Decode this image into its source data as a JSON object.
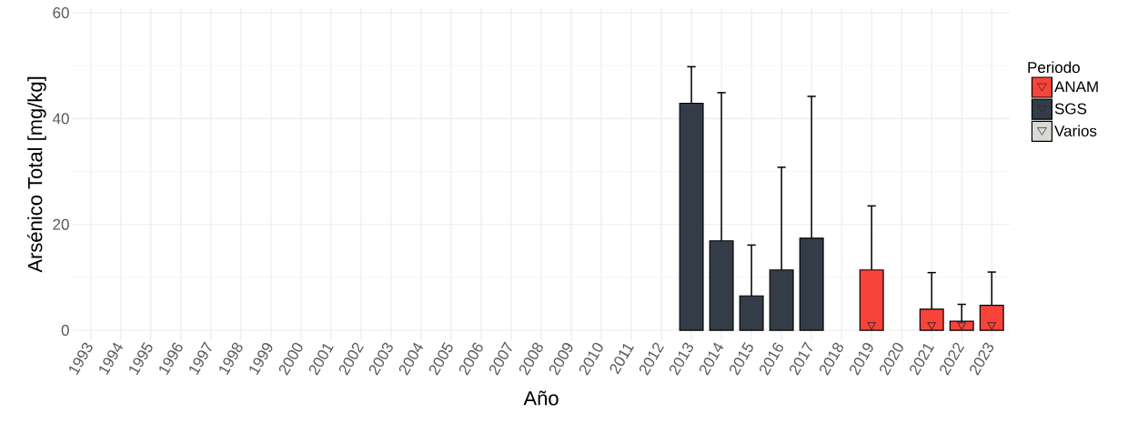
{
  "chart_data": {
    "type": "bar",
    "xlabel": "Año",
    "ylabel": "Arsénico Total [mg/kg]",
    "legend_title": "Periodo",
    "categories": [
      "1993",
      "1994",
      "1995",
      "1996",
      "1997",
      "1998",
      "1999",
      "2000",
      "2001",
      "2002",
      "2003",
      "2004",
      "2005",
      "2006",
      "2007",
      "2008",
      "2009",
      "2010",
      "2011",
      "2012",
      "2013",
      "2014",
      "2015",
      "2016",
      "2017",
      "2018",
      "2019",
      "2020",
      "2021",
      "2022",
      "2023"
    ],
    "series": [
      {
        "name": "ANAM",
        "color": "#f8433b",
        "values": [
          null,
          null,
          null,
          null,
          null,
          null,
          null,
          null,
          null,
          null,
          null,
          null,
          null,
          null,
          null,
          null,
          null,
          null,
          null,
          null,
          null,
          null,
          null,
          null,
          null,
          null,
          11.4,
          null,
          4.0,
          1.7,
          4.7
        ],
        "errors": [
          null,
          null,
          null,
          null,
          null,
          null,
          null,
          null,
          null,
          null,
          null,
          null,
          null,
          null,
          null,
          null,
          null,
          null,
          null,
          null,
          null,
          null,
          null,
          null,
          null,
          null,
          [
            11.4,
            23.5
          ],
          null,
          [
            4.0,
            10.9
          ],
          [
            1.7,
            4.9
          ],
          [
            4.7,
            11.0
          ]
        ]
      },
      {
        "name": "SGS",
        "color": "#343d47",
        "values": [
          null,
          null,
          null,
          null,
          null,
          null,
          null,
          null,
          null,
          null,
          null,
          null,
          null,
          null,
          null,
          null,
          null,
          null,
          null,
          null,
          42.9,
          16.9,
          6.5,
          11.4,
          17.4,
          null,
          null,
          null,
          null,
          null,
          null
        ],
        "errors": [
          null,
          null,
          null,
          null,
          null,
          null,
          null,
          null,
          null,
          null,
          null,
          null,
          null,
          null,
          null,
          null,
          null,
          null,
          null,
          null,
          [
            42.9,
            49.8
          ],
          [
            16.9,
            44.9
          ],
          [
            6.5,
            16.1
          ],
          [
            11.4,
            30.8
          ],
          [
            17.4,
            44.2
          ],
          null,
          null,
          null,
          null,
          null,
          null
        ]
      },
      {
        "name": "Varios",
        "color": "#d9d9d6",
        "values": [
          null,
          null,
          null,
          null,
          null,
          null,
          null,
          null,
          null,
          null,
          null,
          null,
          null,
          null,
          null,
          null,
          null,
          null,
          null,
          null,
          null,
          null,
          null,
          null,
          null,
          null,
          null,
          null,
          null,
          null,
          null
        ]
      },
      {
        "type": "scatter",
        "marker": "triangle",
        "color": "#1a1a1a",
        "values": [
          null,
          null,
          null,
          null,
          null,
          null,
          null,
          null,
          null,
          null,
          null,
          null,
          null,
          null,
          null,
          null,
          null,
          null,
          null,
          null,
          null,
          null,
          null,
          null,
          null,
          null,
          1.0,
          null,
          1.0,
          1.0,
          1.0
        ]
      }
    ],
    "ylim": [
      -2,
      61
    ],
    "yticks": [
      0,
      20,
      40,
      60
    ],
    "grid": true,
    "legend": "right"
  }
}
